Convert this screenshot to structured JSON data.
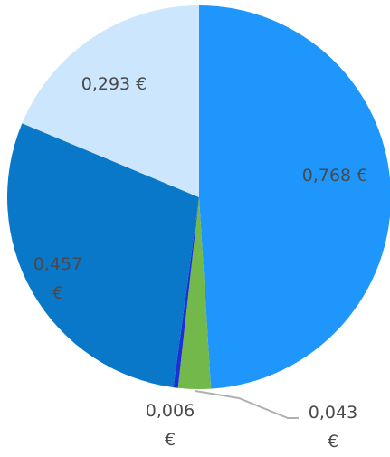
{
  "chart_data": {
    "type": "pie",
    "slices": [
      {
        "label_lines": [
          "0,768 €"
        ],
        "value": 0.768,
        "color": "#1e96fc"
      },
      {
        "label_lines": [
          "0,043",
          "€"
        ],
        "value": 0.043,
        "color": "#72b84a"
      },
      {
        "label_lines": [
          "0,006",
          "€"
        ],
        "value": 0.006,
        "color": "#1a2fd6"
      },
      {
        "label_lines": [
          "0,457",
          "€"
        ],
        "value": 0.457,
        "color": "#0a78c8"
      },
      {
        "label_lines": [
          "0,293 €"
        ],
        "value": 0.293,
        "color": "#cce6fd"
      }
    ],
    "start_angle_deg": 0,
    "direction": "clockwise"
  }
}
